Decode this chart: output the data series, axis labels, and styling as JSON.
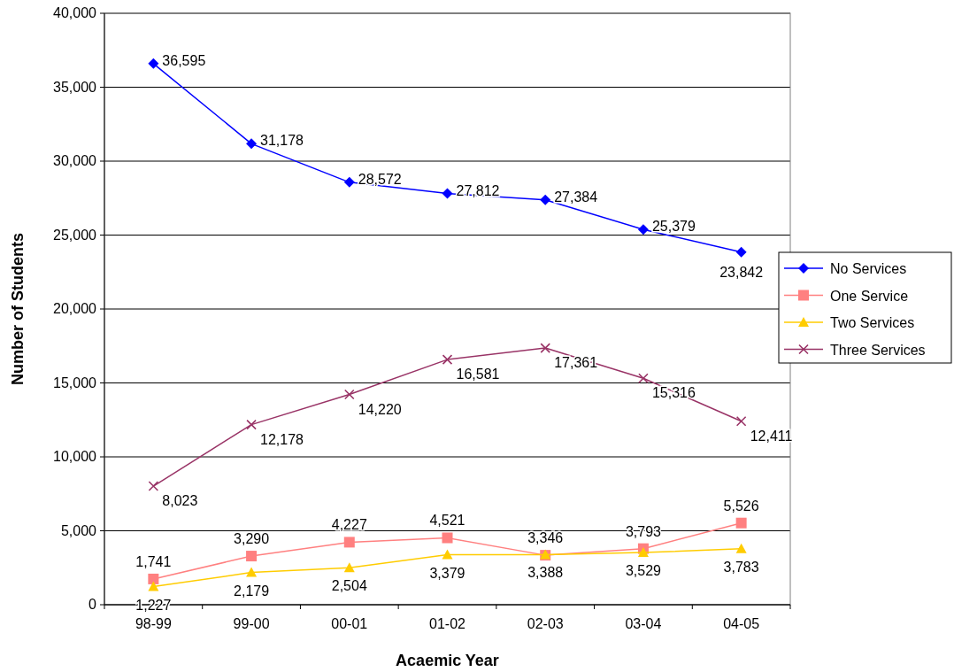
{
  "chart_data": {
    "type": "line",
    "xlabel": "Acaemic Year",
    "ylabel": "Number of Students",
    "categories": [
      "98-99",
      "99-00",
      "00-01",
      "01-02",
      "02-03",
      "03-04",
      "04-05"
    ],
    "series": [
      {
        "name": "No Services",
        "color": "#0000ff",
        "marker": "diamond",
        "values": [
          36595,
          31178,
          28572,
          27812,
          27384,
          25379,
          23842
        ],
        "value_labels": [
          "36,595",
          "31,178",
          "28,572",
          "27,812",
          "27,384",
          "25,379",
          "23,842"
        ]
      },
      {
        "name": "One Service",
        "color": "#ff8080",
        "marker": "square",
        "values": [
          1741,
          3290,
          4227,
          4521,
          3346,
          3793,
          5526
        ],
        "value_labels": [
          "1,741",
          "3,290",
          "4,227",
          "4,521",
          "3,346",
          "3,793",
          "5,526"
        ]
      },
      {
        "name": "Two Services",
        "color": "#ffcc00",
        "marker": "triangle",
        "values": [
          1227,
          2179,
          2504,
          3379,
          3388,
          3529,
          3783
        ],
        "value_labels": [
          "1,227",
          "2,179",
          "2,504",
          "3,379",
          "3,388",
          "3,529",
          "3,783"
        ]
      },
      {
        "name": "Three Services",
        "color": "#993366",
        "marker": "cross",
        "values": [
          8023,
          12178,
          14220,
          16581,
          17361,
          15316,
          12411
        ],
        "value_labels": [
          "8,023",
          "12,178",
          "14,220",
          "16,581",
          "17,361",
          "15,316",
          "12,411"
        ]
      }
    ],
    "ylim": [
      0,
      40000
    ],
    "yticks": [
      {
        "value": 0,
        "label": "0"
      },
      {
        "value": 5000,
        "label": "5,000"
      },
      {
        "value": 10000,
        "label": "10,000"
      },
      {
        "value": 15000,
        "label": "15,000"
      },
      {
        "value": 20000,
        "label": "20,000"
      },
      {
        "value": 25000,
        "label": "25,000"
      },
      {
        "value": 30000,
        "label": "30,000"
      },
      {
        "value": 35000,
        "label": "35,000"
      },
      {
        "value": 40000,
        "label": "40,000"
      }
    ],
    "grid": "y",
    "legend": "right",
    "line_style": "solid"
  }
}
